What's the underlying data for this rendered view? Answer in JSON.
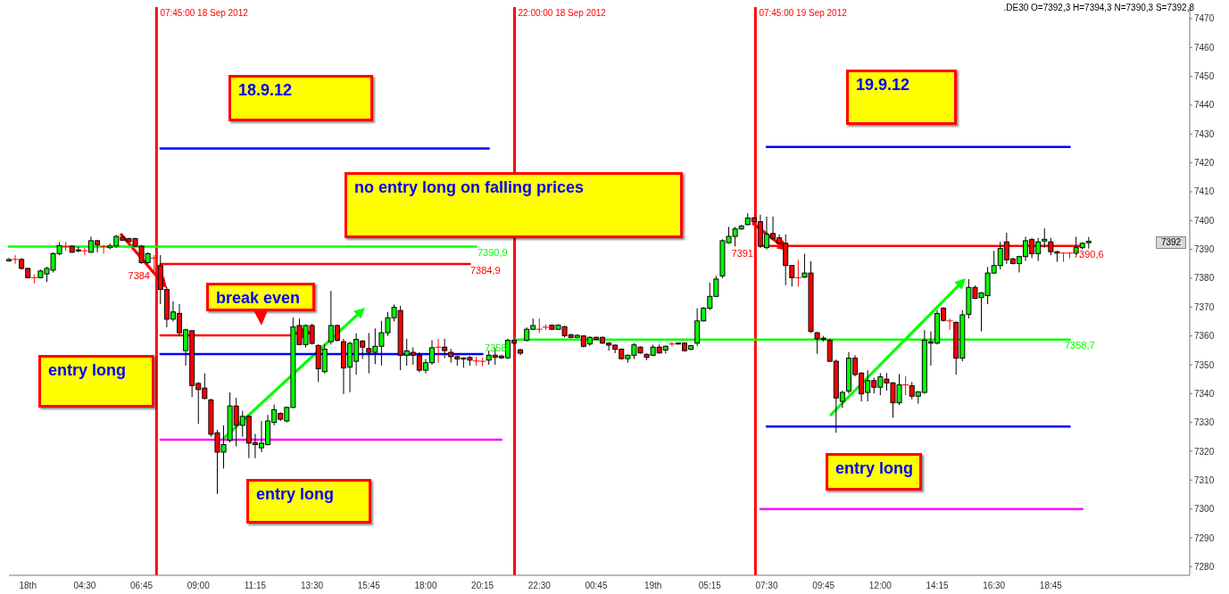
{
  "chart_data": {
    "type": "candlestick",
    "categories": [
      null,
      null,
      null,
      "18th",
      null,
      null,
      null,
      null,
      null,
      null,
      null,
      null,
      "04:30",
      null,
      null,
      null,
      null,
      null,
      null,
      null,
      null,
      "06:45",
      null,
      null,
      null,
      null,
      null,
      null,
      null,
      null,
      "09:00",
      null,
      null,
      null,
      null,
      null,
      null,
      null,
      null,
      "11:15",
      null,
      null,
      null,
      null,
      null,
      null,
      null,
      null,
      "13:30",
      null,
      null,
      null,
      null,
      null,
      null,
      null,
      null,
      "15:45",
      null,
      null,
      null,
      null,
      null,
      null,
      null,
      null,
      "18:00",
      null,
      null,
      null,
      null,
      null,
      null,
      null,
      null,
      "20:15",
      null,
      null,
      null,
      null,
      null,
      null,
      null,
      null,
      "22:30",
      null,
      null,
      null,
      null,
      null,
      null,
      null,
      null,
      "00:45",
      null,
      null,
      null,
      null,
      null,
      null,
      null,
      null,
      "19th",
      null,
      null,
      null,
      null,
      null,
      null,
      null,
      null,
      "05:15",
      null,
      null,
      null,
      null,
      null,
      null,
      null,
      null,
      "07:30",
      null,
      null,
      null,
      null,
      null,
      null,
      null,
      null,
      "09:45",
      null,
      null,
      null,
      null,
      null,
      null,
      null,
      null,
      "12:00",
      null,
      null,
      null,
      null,
      null,
      null,
      null,
      null,
      "14:15",
      null,
      null,
      null,
      null,
      null,
      null,
      null,
      null,
      "16:30",
      null,
      null,
      null,
      null,
      null,
      null,
      null,
      null,
      "18:45",
      null,
      null,
      null,
      null,
      null,
      null,
      null,
      null,
      null,
      null,
      null,
      null,
      null,
      null,
      null,
      null,
      null,
      null,
      null,
      null,
      null,
      null
    ],
    "ohlc": [
      [
        7386,
        7387,
        7385.8,
        7386.5
      ],
      [
        7386.5,
        7388,
        7385,
        7386.5
      ],
      [
        7386.5,
        7387,
        7383,
        7383.4
      ],
      [
        7383.4,
        7383.6,
        7380,
        7380.2
      ],
      [
        7380.2,
        7381.3,
        7378.2,
        7380.2
      ],
      [
        7380.2,
        7383,
        7380,
        7382.5
      ],
      [
        7381.5,
        7384,
        7378.7,
        7383.4
      ],
      [
        7382.8,
        7389,
        7382,
        7388.5
      ],
      [
        7388.5,
        7392.5,
        7388,
        7391.3
      ],
      [
        7391,
        7392.5,
        7389.5,
        7391
      ],
      [
        7391.1,
        7391.5,
        7388.8,
        7389
      ],
      [
        7389.5,
        7391,
        7389,
        7389.8
      ],
      [
        7389.5,
        7390.5,
        7388,
        7389.5
      ],
      [
        7389,
        7394.4,
        7388.8,
        7393
      ],
      [
        7393,
        7393.3,
        7389,
        7391.6
      ],
      [
        7391,
        7391.5,
        7388.5,
        7391
      ],
      [
        7390.6,
        7392,
        7390,
        7391.2
      ],
      [
        7391.2,
        7395,
        7390.6,
        7394.5
      ],
      [
        7394.2,
        7395,
        7393,
        7393.2
      ],
      [
        7393.7,
        7394,
        7392.5,
        7392.7
      ],
      [
        7393.7,
        7394,
        7391,
        7391.1
      ],
      [
        7391.1,
        7391.5,
        7385,
        7385.4
      ],
      [
        7385.4,
        7389,
        7385,
        7388.5
      ],
      [
        7387,
        7388,
        7382,
        7387
      ],
      [
        7384.4,
        7388,
        7371,
        7376.1
      ],
      [
        7376.1,
        7377,
        7363,
        7365.8
      ],
      [
        7365.8,
        7372,
        7365,
        7368.3
      ],
      [
        7367.8,
        7371,
        7360,
        7361.1
      ],
      [
        7354.9,
        7362.5,
        7349.7,
        7362.1
      ],
      [
        7361.8,
        7362,
        7338.8,
        7342.8
      ],
      [
        7343.5,
        7344,
        7329.5,
        7341.4
      ],
      [
        7341.9,
        7347,
        7338,
        7338.3
      ],
      [
        7337.8,
        7338.2,
        7325,
        7325.9
      ],
      [
        7326.4,
        7327.4,
        7305.2,
        7319.7
      ],
      [
        7319.7,
        7329,
        7314,
        7322.3
      ],
      [
        7323.8,
        7340.4,
        7323,
        7335.7
      ],
      [
        7335.7,
        7338.5,
        7321.7,
        7329
      ],
      [
        7329,
        7334,
        7325,
        7332.1
      ],
      [
        7332.1,
        7332.5,
        7317.6,
        7322.8
      ],
      [
        7323,
        7326,
        7317.6,
        7322.3
      ],
      [
        7321.2,
        7330.5,
        7319.7,
        7322.8
      ],
      [
        7322.3,
        7332.6,
        7322,
        7330.5
      ],
      [
        7330,
        7336.2,
        7329,
        7334.4
      ],
      [
        7333.1,
        7333.5,
        7330.5,
        7331.1
      ],
      [
        7330.5,
        7335.5,
        7330,
        7335.2
      ],
      [
        7335.2,
        7366.3,
        7335,
        7363.1
      ],
      [
        7363.6,
        7366,
        7356.8,
        7357
      ],
      [
        7357,
        7364,
        7356,
        7363.6
      ],
      [
        7363.6,
        7364.2,
        7357,
        7357.4
      ],
      [
        7356.7,
        7357,
        7344,
        7348.6
      ],
      [
        7347.6,
        7357,
        7347,
        7355.4
      ],
      [
        7358,
        7375.6,
        7357,
        7363.6
      ],
      [
        7363.6,
        7364,
        7358,
        7358.5
      ],
      [
        7358,
        7359,
        7339.8,
        7348.9
      ],
      [
        7349.2,
        7358,
        7340.4,
        7357.4
      ],
      [
        7351.2,
        7360.9,
        7346.6,
        7358.8
      ],
      [
        7358.2,
        7358.6,
        7352,
        7356.1
      ],
      [
        7355.6,
        7361,
        7347,
        7354.3
      ],
      [
        7354.3,
        7362.6,
        7350.2,
        7356.4
      ],
      [
        7356.4,
        7365.2,
        7349.7,
        7361.1
      ],
      [
        7361.1,
        7368.3,
        7360,
        7366.3
      ],
      [
        7366.3,
        7370.9,
        7365,
        7369.9
      ],
      [
        7368.8,
        7370.4,
        7348.1,
        7353.3
      ],
      [
        7353.3,
        7359,
        7349.7,
        7354.8
      ],
      [
        7354.3,
        7356,
        7350,
        7353.3
      ],
      [
        7353.3,
        7354.3,
        7347.4,
        7348.1
      ],
      [
        7348.1,
        7352,
        7347,
        7350.7
      ],
      [
        7350.7,
        7358.5,
        7350,
        7355.9
      ],
      [
        7356.1,
        7359,
        7350.7,
        7356.1
      ],
      [
        7356.1,
        7359,
        7352.3,
        7354.9
      ],
      [
        7354.3,
        7355.5,
        7350.7,
        7352.8
      ],
      [
        7352.8,
        7353.2,
        7349.7,
        7352
      ],
      [
        7352.3,
        7352.6,
        7349,
        7352
      ],
      [
        7352.5,
        7353,
        7349.7,
        7351.6
      ],
      [
        7351.3,
        7352.8,
        7349.7,
        7351.3
      ],
      [
        7351.2,
        7352.5,
        7349.5,
        7351.2
      ],
      [
        7351.6,
        7354.9,
        7350,
        7353.3
      ],
      [
        7353.3,
        7355.9,
        7350,
        7352.6
      ],
      [
        7353,
        7353.5,
        7352,
        7352.4
      ],
      [
        7352.4,
        7359,
        7352,
        7358.5
      ],
      [
        7358.5,
        7359,
        7357,
        7357.5
      ],
      [
        7355.2,
        7355.5,
        7353.3,
        7354
      ],
      [
        7358.5,
        7363,
        7358,
        7362.3
      ],
      [
        7362.3,
        7366,
        7362,
        7363.6
      ],
      [
        7362.3,
        7366,
        7361,
        7362.3
      ],
      [
        7363,
        7364,
        7362,
        7363
      ],
      [
        7363.7,
        7364,
        7362,
        7362.3
      ],
      [
        7362.3,
        7364,
        7362,
        7363.7
      ],
      [
        7363.2,
        7363.5,
        7359.5,
        7360.1
      ],
      [
        7360.4,
        7360.7,
        7359.2,
        7359.5
      ],
      [
        7359.5,
        7360.5,
        7359.2,
        7360.2
      ],
      [
        7360,
        7360.2,
        7356,
        7356.4
      ],
      [
        7357.2,
        7359.8,
        7356.5,
        7359.5
      ],
      [
        7359.5,
        7359.8,
        7358.5,
        7358.8
      ],
      [
        7359.5,
        7359.8,
        7357.2,
        7357.5
      ],
      [
        7357.5,
        7357.8,
        7354.9,
        7356.8
      ],
      [
        7356.8,
        7357,
        7354,
        7355.4
      ],
      [
        7355.4,
        7355.6,
        7351.8,
        7352.1
      ],
      [
        7352.1,
        7353.5,
        7350.7,
        7353.3
      ],
      [
        7353.3,
        7357.5,
        7352,
        7356.9
      ],
      [
        7356.1,
        7356.4,
        7353.8,
        7354.1
      ],
      [
        7353.6,
        7353.9,
        7351.6,
        7352.6
      ],
      [
        7353.3,
        7356.9,
        7353,
        7356.1
      ],
      [
        7356.1,
        7357,
        7353.8,
        7354.1
      ],
      [
        7355.1,
        7356.7,
        7353.9,
        7356.4
      ],
      [
        7357.2,
        7358,
        7356.4,
        7357.2
      ],
      [
        7357.2,
        7357.8,
        7357,
        7357.5
      ],
      [
        7357.5,
        7357.8,
        7354.5,
        7354.9
      ],
      [
        7355.4,
        7356.9,
        7355,
        7356.6
      ],
      [
        7357.5,
        7369.6,
        7356.5,
        7365.2
      ],
      [
        7365.2,
        7370,
        7365,
        7369.6
      ],
      [
        7369.6,
        7378.5,
        7369,
        7373.7
      ],
      [
        7373.7,
        7380.8,
        7373.5,
        7379.7
      ],
      [
        7380.8,
        7393.5,
        7380,
        7393
      ],
      [
        7392.3,
        7397.8,
        7392,
        7394.5
      ],
      [
        7394.5,
        7397.8,
        7391,
        7397.1
      ],
      [
        7397.1,
        7398.5,
        7396.8,
        7398.1
      ],
      [
        7398.6,
        7402.5,
        7398.3,
        7400.9
      ],
      [
        7400.9,
        7401.2,
        7399.4,
        7399.6
      ],
      [
        7399.6,
        7402,
        7390.5,
        7391.1
      ],
      [
        7390.6,
        7401.4,
        7390,
        7395.2
      ],
      [
        7395.5,
        7401.4,
        7393.5,
        7393.7
      ],
      [
        7394,
        7395.2,
        7392,
        7392.1
      ],
      [
        7392.1,
        7395.2,
        7377.6,
        7384.4
      ],
      [
        7384.4,
        7384.6,
        7377.1,
        7380.2
      ],
      [
        7380.2,
        7386.4,
        7377.1,
        7380.2
      ],
      [
        7380.4,
        7388.5,
        7380,
        7381.8
      ],
      [
        7381.8,
        7385.9,
        7361,
        7361.6
      ],
      [
        7361.1,
        7361.3,
        7353.8,
        7359
      ],
      [
        7359.2,
        7360,
        7358,
        7358.8
      ],
      [
        7358.5,
        7359,
        7351,
        7351.2
      ],
      [
        7351.2,
        7351.8,
        7326.4,
        7338.5
      ],
      [
        7337.3,
        7341,
        7335,
        7340.4
      ],
      [
        7340.9,
        7354.4,
        7340,
        7352.3
      ],
      [
        7352.3,
        7353.3,
        7346,
        7346.6
      ],
      [
        7347.1,
        7347.4,
        7337.3,
        7339.9
      ],
      [
        7340.4,
        7348.1,
        7337.3,
        7344.5
      ],
      [
        7344.5,
        7345.5,
        7340,
        7342.2
      ],
      [
        7342.2,
        7347.1,
        7339.4,
        7345.8
      ],
      [
        7345,
        7347.1,
        7341,
        7343.7
      ],
      [
        7343.7,
        7344,
        7331.6,
        7336.8
      ],
      [
        7336.8,
        7346.8,
        7336,
        7343
      ],
      [
        7343,
        7346.1,
        7339.4,
        7343
      ],
      [
        7342.7,
        7344,
        7338,
        7339.1
      ],
      [
        7339.1,
        7340.8,
        7336.5,
        7340.6
      ],
      [
        7340.4,
        7362.1,
        7340,
        7358.5
      ],
      [
        7358,
        7361.6,
        7349.7,
        7357.5
      ],
      [
        7357.5,
        7368.9,
        7357,
        7367.8
      ],
      [
        7369.6,
        7370,
        7365,
        7365.4
      ],
      [
        7365.2,
        7366,
        7362.1,
        7365.2
      ],
      [
        7364.7,
        7365,
        7346.6,
        7352.3
      ],
      [
        7352.3,
        7368.9,
        7351.2,
        7367.3
      ],
      [
        7367.5,
        7379.7,
        7366,
        7376.8
      ],
      [
        7376.8,
        7377.5,
        7372.8,
        7373
      ],
      [
        7373.3,
        7375.2,
        7361.6,
        7374.9
      ],
      [
        7374,
        7383.9,
        7371,
        7381.8
      ],
      [
        7381.8,
        7389.5,
        7381.5,
        7384.4
      ],
      [
        7384.4,
        7392.6,
        7383,
        7390.3
      ],
      [
        7392.6,
        7395.8,
        7385,
        7386.4
      ],
      [
        7386.7,
        7387,
        7384.8,
        7385.1
      ],
      [
        7385.1,
        7387.8,
        7382,
        7387.5
      ],
      [
        7387.5,
        7394.4,
        7386,
        7393
      ],
      [
        7393.4,
        7394,
        7387,
        7388.5
      ],
      [
        7388.5,
        7394,
        7386,
        7392.6
      ],
      [
        7392.9,
        7397.3,
        7390.6,
        7393.5
      ],
      [
        7392.6,
        7394,
        7388,
        7389.2
      ],
      [
        7389.2,
        7389.5,
        7385.7,
        7388.7
      ],
      [
        7388.7,
        7389,
        7385.7,
        7388.7
      ],
      [
        7388.7,
        7389,
        7386.9,
        7388.7
      ],
      [
        7388.7,
        7394.4,
        7388,
        7390.6
      ],
      [
        7390.6,
        7392.5,
        7390,
        7392.1
      ],
      [
        7392.3,
        7394.3,
        7390.3,
        7392.8
      ],
      null,
      null,
      null,
      null,
      null,
      null,
      null,
      null,
      null,
      null,
      null,
      null,
      null,
      null,
      null,
      null
    ],
    "series": [
      {
        "type": "line",
        "color": "#0000ff",
        "values": [
          null,
          null,
          null,
          null,
          null,
          null,
          null,
          null,
          null,
          null,
          null,
          null,
          null,
          null,
          null,
          null,
          null,
          null,
          null,
          null,
          null,
          null,
          null,
          null,
          7425,
          7425,
          7425,
          7425,
          7425,
          7425,
          7425,
          7425,
          7425,
          7425,
          7425,
          7425,
          7425,
          7425,
          7425,
          7425,
          7425,
          7425,
          7425,
          7425,
          7425,
          7425,
          7425,
          7425,
          7425,
          7425,
          7425,
          7425,
          7425,
          7425,
          7425,
          7425,
          7425,
          7425,
          7425,
          7425,
          7425,
          7425,
          7425,
          7425,
          7425,
          7425,
          7425,
          7425,
          7425,
          7425,
          7425,
          7425,
          7425,
          7425,
          7425,
          7425,
          7425,
          null,
          null,
          null,
          null,
          null,
          null,
          null,
          null,
          null,
          null,
          null,
          null,
          null,
          null,
          null,
          null,
          null,
          null,
          null,
          null,
          null,
          null,
          null,
          null,
          null,
          null,
          null,
          null,
          null,
          null,
          null,
          null,
          null,
          null,
          null,
          null,
          null,
          null,
          null,
          null,
          null,
          null,
          null,
          7425.5,
          7425.5,
          7425.5,
          7425.5,
          7425.5,
          7425.5,
          7425.5,
          7425.5,
          7425.5,
          7425.5,
          7425.5,
          7425.5,
          7425.5,
          7425.5,
          7425.5,
          7425.5,
          7425.5,
          7425.5,
          7425.5,
          7425.5,
          7425.5,
          7425.5,
          7425.5,
          7425.5,
          7425.5,
          7425.5,
          7425.5,
          7425.5,
          7425.5,
          7425.5,
          7425.5,
          7425.5,
          7425.5,
          7425.5,
          7425.5,
          7425.5,
          7425.5,
          7425.5,
          7425.5,
          7425.5,
          7425.5,
          7425.5,
          7425.5,
          7425.5,
          7425.5,
          7425.5,
          7425.5,
          7425.5,
          7425.5,
          null,
          null,
          null,
          null,
          null,
          null,
          null,
          null,
          null,
          null,
          null,
          null,
          null,
          null,
          null,
          null,
          null,
          null,
          null
        ]
      },
      {
        "type": "line",
        "color": "#0000ff",
        "values": [
          null,
          null,
          null,
          null,
          null,
          null,
          null,
          null,
          null,
          null,
          null,
          null,
          null,
          null,
          null,
          null,
          null,
          null,
          null,
          null,
          null,
          null,
          null,
          null,
          7353.7,
          7353.7,
          7353.7,
          7353.7,
          7353.7,
          7353.7,
          7353.7,
          7353.7,
          7353.7,
          7353.7,
          7353.7,
          7353.7,
          7353.7,
          7353.7,
          7353.7,
          7353.7,
          7353.7,
          7353.7,
          7353.7,
          7353.7,
          7353.7,
          7353.7,
          7353.7,
          7353.7,
          7353.7,
          7353.7,
          7353.7,
          7353.7,
          7353.7,
          7353.7,
          7353.7,
          7353.7,
          7353.7,
          7353.7,
          7353.7,
          7353.7,
          7353.7,
          7353.7,
          7353.7,
          7353.7,
          7353.7,
          7353.7,
          7353.7,
          7353.7,
          7353.7,
          7353.7,
          7353.7,
          7353.7,
          7353.7,
          7353.7,
          7353.7,
          7353.7,
          null,
          null,
          null,
          null,
          null,
          null,
          null,
          null,
          null,
          null,
          null,
          null,
          null,
          null,
          null,
          null,
          null,
          null,
          null,
          null,
          null,
          null,
          null,
          null,
          null,
          null,
          null,
          null,
          null,
          null,
          null,
          null,
          null,
          null,
          null,
          null,
          null,
          null,
          null,
          null,
          null,
          null,
          null,
          null,
          7328.6,
          7328.6,
          7328.6,
          7328.6,
          7328.6,
          7328.6,
          7328.6,
          7328.6,
          7328.6,
          7328.6,
          7328.6,
          7328.6,
          7328.6,
          7328.6,
          7328.6,
          7328.6,
          7328.6,
          7328.6,
          7328.6,
          7328.6,
          7328.6,
          7328.6,
          7328.6,
          7328.6,
          7328.6,
          7328.6,
          7328.6,
          7328.6,
          7328.6,
          7328.6,
          7328.6,
          7328.6,
          7328.6,
          7328.6,
          7328.6,
          7328.6,
          7328.6,
          7328.6,
          7328.6,
          7328.6,
          7328.6,
          7328.6,
          7328.6,
          7328.6,
          7328.6,
          7328.6,
          7328.6,
          7328.6,
          7328.6,
          null,
          null,
          null,
          null,
          null,
          null,
          null,
          null,
          null,
          null,
          null,
          null,
          null,
          null,
          null,
          null,
          null,
          null,
          null
        ]
      },
      {
        "type": "line",
        "color": "#00ff00",
        "values": [
          7391,
          7391,
          7391,
          7391,
          7391,
          7391,
          7391,
          7391,
          7391,
          7391,
          7391,
          7391,
          7391,
          7391,
          7391,
          7391,
          7391,
          7391,
          7391,
          7391,
          7391,
          7391,
          7391,
          7391,
          7391,
          7391,
          7391,
          7391,
          7391,
          7391,
          7391,
          7391,
          7391,
          7391,
          7391,
          7391,
          7391,
          7391,
          7391,
          7391,
          7391,
          7391,
          7391,
          7391,
          7391,
          7391,
          7391,
          7391,
          7391,
          7391,
          7391,
          7391,
          7391,
          7391,
          7391,
          7391,
          7391,
          7391,
          7391,
          7391,
          7391,
          7391,
          7391,
          7391,
          7391,
          7391,
          7391,
          7391,
          7391,
          7391,
          7391,
          7391,
          7391,
          7391,
          7391,
          null,
          null,
          null,
          null,
          null,
          7358.7,
          7358.7,
          7358.7,
          7358.7,
          7358.7,
          7358.7,
          7358.7,
          7358.7,
          7358.7,
          7358.7,
          7358.7,
          7358.7,
          7358.7,
          7358.7,
          7358.7,
          7358.7,
          7358.7,
          7358.7,
          7358.7,
          7358.7,
          7358.7,
          7358.7,
          7358.7,
          7358.7,
          7358.7,
          7358.7,
          7358.7,
          7358.7,
          7358.7,
          7358.7,
          7358.7,
          7358.7,
          7358.7,
          7358.7,
          7358.7,
          7358.7,
          7358.7,
          7358.7,
          7358.7,
          7358.7,
          7358.7,
          7358.7,
          7358.7,
          7358.7,
          7358.7,
          7358.7,
          7358.7,
          7358.7,
          7358.7,
          7358.7,
          7358.7,
          7358.7,
          7358.7,
          7358.7,
          7358.7,
          7358.7,
          7358.7,
          7358.7,
          7358.7,
          7358.7,
          7358.7,
          7358.7,
          7358.7,
          7358.7,
          7358.7,
          7358.7,
          7358.7,
          7358.7,
          7358.7,
          7358.7,
          7358.7,
          7358.7,
          7358.7,
          7358.7,
          7358.7,
          7358.7,
          7358.7,
          7358.7,
          7358.7,
          7358.7,
          7358.7,
          7358.7,
          7358.7,
          7358.7,
          7358.7,
          7358.7,
          7358.7,
          7358.7,
          7358.7,
          null,
          null,
          null,
          null,
          null,
          null,
          null,
          null,
          null,
          null,
          null,
          null,
          null,
          null,
          null,
          null,
          null,
          null,
          null
        ]
      },
      {
        "type": "line",
        "color": "#ff0000",
        "values": [
          null,
          null,
          null,
          null,
          null,
          null,
          null,
          null,
          null,
          null,
          null,
          null,
          null,
          null,
          null,
          null,
          null,
          null,
          null,
          null,
          null,
          null,
          null,
          null,
          7384.9,
          7384.9,
          7384.9,
          7384.9,
          7384.9,
          7384.9,
          7384.9,
          7384.9,
          7384.9,
          7384.9,
          7384.9,
          7384.9,
          7384.9,
          7384.9,
          7384.9,
          7384.9,
          7384.9,
          7384.9,
          7384.9,
          7384.9,
          7384.9,
          7384.9,
          7384.9,
          7384.9,
          7384.9,
          7384.9,
          7384.9,
          7384.9,
          7384.9,
          7384.9,
          7384.9,
          7384.9,
          7384.9,
          7384.9,
          7384.9,
          7384.9,
          7384.9,
          7384.9,
          7384.9,
          7384.9,
          7384.9,
          7384.9,
          7384.9,
          7384.9,
          7384.9,
          7384.9,
          7384.9,
          7384.9,
          7384.9,
          7384.9,
          null,
          null,
          null,
          null,
          null,
          null,
          null,
          null,
          null,
          null,
          null,
          null,
          null,
          null,
          null,
          null,
          null,
          null,
          null,
          null,
          null,
          null,
          null,
          null,
          null,
          null,
          null,
          null,
          null,
          null,
          null,
          null,
          null,
          null,
          null,
          null,
          null,
          null,
          null,
          null,
          null,
          null,
          null,
          null,
          null,
          7391.2,
          7391.2,
          7391.2,
          7391.2,
          7391.2,
          7391.2,
          7391.2,
          7391.2,
          7391.2,
          7391.2,
          7391.2,
          7391.2,
          7391.2,
          7391.2,
          7391.2,
          7391.2,
          7391.2,
          7391.2,
          7391.2,
          7391.2,
          7391.2,
          7391.2,
          7391.2,
          7391.2,
          7391.2,
          7391.2,
          7391.2,
          7391.2,
          7391.2,
          7391.2,
          7391.2,
          7391.2,
          7391.2,
          7391.2,
          7391.2,
          7391.2,
          7391.2,
          7391.2,
          7391.2,
          7391.2,
          7391.2,
          7391.2,
          7391.2,
          7391.2,
          7391.2,
          7391.2,
          7391.2,
          7391.2,
          7391.2,
          7391.2,
          7391.2,
          7391.2,
          null,
          null,
          null,
          null,
          null,
          null,
          null,
          null,
          null,
          null,
          null,
          null,
          null,
          null,
          null,
          null,
          null
        ]
      },
      {
        "type": "line",
        "color": "#ff0000",
        "values": [
          null,
          null,
          null,
          null,
          null,
          null,
          null,
          null,
          null,
          null,
          null,
          null,
          null,
          null,
          null,
          null,
          null,
          null,
          null,
          null,
          null,
          null,
          null,
          null,
          7360.2,
          7360.2,
          7360.2,
          7360.2,
          7360.2,
          7360.2,
          7360.2,
          7360.2,
          7360.2,
          7360.2,
          7360.2,
          7360.2,
          7360.2,
          7360.2,
          7360.2,
          7360.2,
          7360.2,
          7360.2,
          7360.2,
          7360.2,
          7360.2,
          7360.2,
          null,
          null,
          null,
          null,
          null,
          null,
          null,
          null,
          null,
          null,
          null,
          null,
          null,
          null,
          null,
          null,
          null,
          null,
          null,
          null,
          null,
          null,
          null,
          null,
          null,
          null,
          null,
          null,
          null,
          null,
          null,
          null,
          null,
          null,
          null,
          null,
          null,
          null,
          null,
          null,
          null,
          null,
          null,
          null,
          null,
          null,
          null,
          null,
          null,
          null,
          null,
          null,
          null,
          null,
          null,
          null,
          null,
          null,
          null,
          null,
          null,
          null,
          null,
          null,
          null,
          null,
          null,
          null,
          null,
          null,
          null,
          null,
          null,
          null,
          null,
          null,
          null,
          null,
          null,
          null,
          null,
          null,
          null,
          null,
          null,
          null,
          null,
          null,
          null,
          null,
          null,
          null,
          null,
          null,
          null,
          null,
          null,
          null,
          null,
          null,
          null,
          null,
          null,
          null,
          null,
          null,
          null,
          null,
          null,
          null,
          null,
          null,
          null,
          null,
          null,
          null,
          null,
          null,
          null,
          null,
          null,
          null,
          null,
          null,
          null,
          null,
          null,
          null,
          null,
          null,
          null,
          null,
          null,
          null,
          null,
          null,
          null,
          null,
          null,
          null,
          null,
          null
        ]
      },
      {
        "type": "line",
        "color": "#ff00ff",
        "values": [
          null,
          null,
          null,
          null,
          null,
          null,
          null,
          null,
          null,
          null,
          null,
          null,
          null,
          null,
          null,
          null,
          null,
          null,
          null,
          null,
          null,
          null,
          null,
          null,
          7324,
          7324,
          7324,
          7324,
          7324,
          7324,
          7324,
          7324,
          7324,
          7324,
          7324,
          7324,
          7324,
          7324,
          7324,
          7324,
          7324,
          7324,
          7324,
          7324,
          7324,
          7324,
          7324,
          7324,
          7324,
          7324,
          7324,
          7324,
          7324,
          7324,
          7324,
          7324,
          7324,
          7324,
          7324,
          7324,
          7324,
          7324,
          7324,
          7324,
          7324,
          7324,
          7324,
          7324,
          7324,
          7324,
          7324,
          7324,
          7324,
          7324,
          7324,
          7324,
          7324,
          7324,
          7324,
          null,
          null,
          null,
          null,
          null,
          null,
          null,
          null,
          null,
          null,
          null,
          null,
          null,
          null,
          null,
          null,
          null,
          null,
          null,
          null,
          null,
          null,
          null,
          null,
          null,
          null,
          null,
          null,
          null,
          null,
          null,
          null,
          null,
          null,
          null,
          null,
          null,
          null,
          null,
          null,
          7300,
          7300,
          7300,
          7300,
          7300,
          7300,
          7300,
          7300,
          7300,
          7300,
          7300,
          7300,
          7300,
          7300,
          7300,
          7300,
          7300,
          7300,
          7300,
          7300,
          7300,
          7300,
          7300,
          7300,
          7300,
          7300,
          7300,
          7300,
          7300,
          7300,
          7300,
          7300,
          7300,
          7300,
          7300,
          7300,
          7300,
          7300,
          7300,
          7300,
          7300,
          7300,
          7300,
          7300,
          7300,
          7300,
          7300,
          7300,
          7300,
          7300,
          7300,
          7300,
          null,
          null,
          null,
          null,
          null,
          null,
          null,
          null,
          null,
          null,
          null,
          null,
          null,
          null,
          null,
          null,
          null
        ]
      }
    ],
    "annotations": [
      ".DE30 O=7392,3 H=7394,3 N=7390,3 S=7392,8",
      "18.9.12",
      "no entry long on falling prices",
      "break even",
      "entry long",
      "entry long",
      "19.9.12",
      "entry long",
      "07:45:00 18 Sep 2012",
      "22:00:00 18 Sep 2012",
      "07:45:00 19 Sep 2012",
      "7390,9",
      "7384,9",
      "7358,7",
      "7390,6",
      "7384",
      "7358",
      "7391",
      {
        "text": "7392",
        "y": 7392.3
      }
    ],
    "ylim": [
      7277,
      7474
    ],
    "yticks": [
      7280,
      7290,
      7300,
      7310,
      7320,
      7330,
      7340,
      7350,
      7360,
      7370,
      7380,
      7390,
      7400,
      7410,
      7420,
      7430,
      7440,
      7450,
      7460,
      7470
    ],
    "line_style": "solid"
  }
}
